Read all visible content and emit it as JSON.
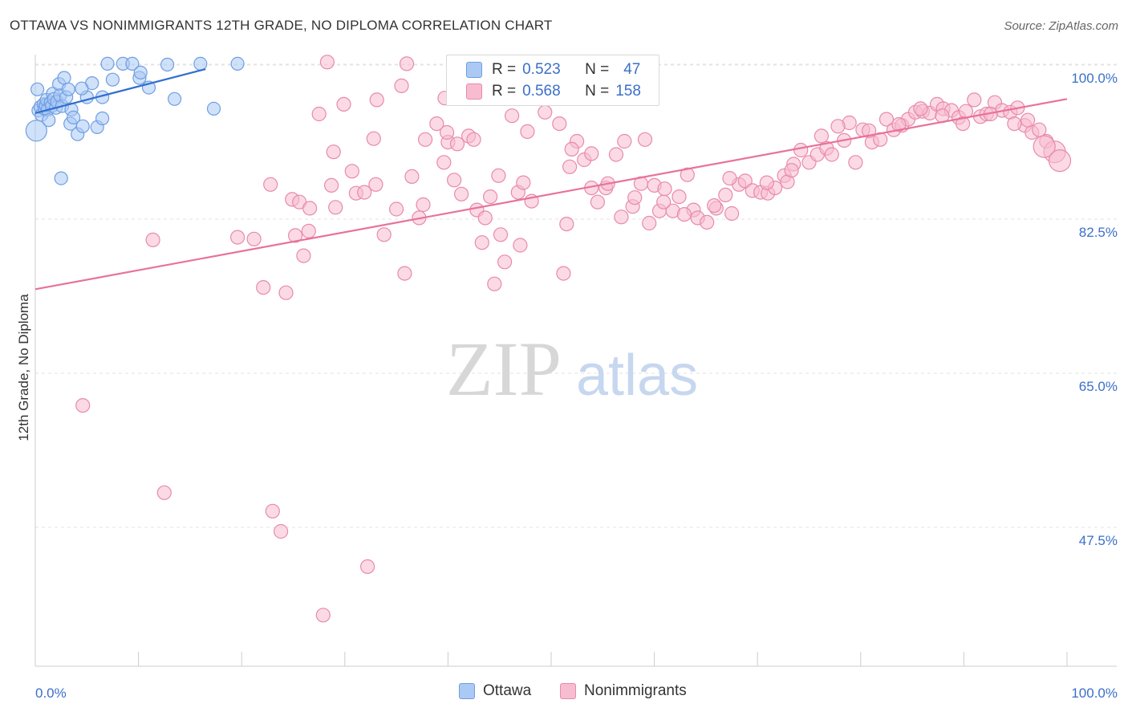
{
  "title": "OTTAWA VS NONIMMIGRANTS 12TH GRADE, NO DIPLOMA CORRELATION CHART",
  "source": "Source: ZipAtlas.com",
  "watermark": {
    "zip": "ZIP",
    "atlas": "atlas"
  },
  "legend": {
    "rows": [
      {
        "r_label": "R =",
        "r_value": "0.523",
        "n_label": "N =",
        "n_value": "47",
        "color": "#aac9f5",
        "stroke": "#6f9ee0"
      },
      {
        "r_label": "R =",
        "r_value": "0.568",
        "n_label": "N =",
        "n_value": "158",
        "color": "#f7bcd0",
        "stroke": "#e88aab"
      }
    ],
    "bottom": [
      "Ottawa",
      "Nonimmigrants"
    ]
  },
  "chart_data": {
    "type": "scatter",
    "title": "OTTAWA VS NONIMMIGRANTS 12TH GRADE, NO DIPLOMA CORRELATION CHART",
    "xlabel": "",
    "ylabel": "12th Grade, No Diploma",
    "xlim": [
      0,
      100
    ],
    "ylim": [
      33,
      101.5
    ],
    "x_tick_labels": [
      "0.0%",
      "100.0%"
    ],
    "y_ticks": [
      100,
      82.5,
      65,
      47.5
    ],
    "y_tick_labels": [
      "100.0%",
      "82.5%",
      "65.0%",
      "47.5%"
    ],
    "grid": true,
    "colors": {
      "ottawa": "#6f9ee0",
      "ottawa_fill": "#aac9f5",
      "nonimmigrants": "#e8729b",
      "nonimmigrants_fill": "#f7bcd0",
      "tick_label": "#3b6fc8"
    },
    "series": [
      {
        "name": "Ottawa",
        "trend": {
          "x": [
            0,
            16.5
          ],
          "y": [
            96.0,
            101.0
          ]
        },
        "points": [
          [
            0.3,
            96.3
          ],
          [
            0.5,
            96.7
          ],
          [
            0.6,
            95.8
          ],
          [
            0.8,
            97.0
          ],
          [
            0.9,
            96.5
          ],
          [
            1.0,
            96.9
          ],
          [
            1.1,
            97.5
          ],
          [
            1.2,
            96.4
          ],
          [
            1.3,
            95.2
          ],
          [
            1.5,
            97.2
          ],
          [
            1.6,
            96.8
          ],
          [
            1.7,
            98.2
          ],
          [
            1.8,
            97.6
          ],
          [
            2.0,
            96.6
          ],
          [
            2.1,
            97.3
          ],
          [
            2.3,
            99.3
          ],
          [
            2.4,
            98.0
          ],
          [
            2.5,
            88.6
          ],
          [
            2.6,
            96.8
          ],
          [
            2.8,
            100.0
          ],
          [
            3.0,
            97.8
          ],
          [
            3.2,
            98.7
          ],
          [
            3.4,
            94.8
          ],
          [
            3.5,
            96.4
          ],
          [
            3.7,
            95.5
          ],
          [
            4.1,
            93.6
          ],
          [
            4.6,
            94.5
          ],
          [
            5.0,
            97.8
          ],
          [
            5.5,
            99.4
          ],
          [
            6.0,
            94.4
          ],
          [
            7.0,
            101.6
          ],
          [
            7.5,
            99.8
          ],
          [
            8.5,
            101.6
          ],
          [
            9.4,
            101.6
          ],
          [
            10.1,
            100.0
          ],
          [
            11.0,
            98.9
          ],
          [
            12.8,
            101.5
          ],
          [
            13.5,
            97.6
          ],
          [
            16.0,
            101.6
          ],
          [
            17.3,
            96.5
          ],
          [
            6.5,
            97.8
          ],
          [
            4.5,
            98.8
          ],
          [
            0.2,
            98.7
          ],
          [
            0.1,
            94.0
          ],
          [
            6.5,
            95.4
          ],
          [
            10.2,
            100.6
          ],
          [
            19.6,
            101.6
          ]
        ],
        "sizes_large": [
          [
            0.1,
            94.0
          ]
        ]
      },
      {
        "name": "Nonimmigrants",
        "trend": {
          "x": [
            0,
            100
          ],
          "y": [
            76.0,
            97.6
          ]
        },
        "points": [
          [
            11.4,
            81.6
          ],
          [
            4.6,
            62.8
          ],
          [
            12.5,
            52.9
          ],
          [
            19.6,
            81.9
          ],
          [
            21.2,
            81.7
          ],
          [
            22.1,
            76.2
          ],
          [
            22.8,
            87.9
          ],
          [
            23.0,
            50.8
          ],
          [
            23.8,
            48.5
          ],
          [
            24.3,
            75.6
          ],
          [
            24.9,
            86.2
          ],
          [
            25.6,
            85.9
          ],
          [
            26.0,
            79.8
          ],
          [
            26.5,
            82.6
          ],
          [
            27.5,
            95.9
          ],
          [
            27.9,
            39.0
          ],
          [
            28.3,
            101.8
          ],
          [
            28.7,
            87.8
          ],
          [
            29.1,
            85.3
          ],
          [
            29.9,
            97.0
          ],
          [
            31.1,
            86.9
          ],
          [
            31.9,
            87.0
          ],
          [
            32.2,
            44.5
          ],
          [
            33.0,
            87.9
          ],
          [
            33.1,
            97.5
          ],
          [
            33.8,
            82.2
          ],
          [
            35.0,
            85.1
          ],
          [
            35.5,
            99.1
          ],
          [
            36.0,
            101.6
          ],
          [
            36.5,
            88.8
          ],
          [
            37.6,
            85.6
          ],
          [
            37.8,
            93.0
          ],
          [
            38.9,
            94.8
          ],
          [
            39.6,
            90.4
          ],
          [
            39.7,
            97.7
          ],
          [
            40.0,
            92.7
          ],
          [
            40.6,
            88.4
          ],
          [
            40.9,
            92.5
          ],
          [
            41.3,
            86.8
          ],
          [
            42.0,
            93.4
          ],
          [
            42.8,
            85.0
          ],
          [
            43.3,
            81.3
          ],
          [
            43.6,
            84.1
          ],
          [
            44.1,
            86.5
          ],
          [
            44.5,
            76.6
          ],
          [
            45.1,
            82.2
          ],
          [
            45.5,
            79.1
          ],
          [
            46.2,
            95.7
          ],
          [
            46.8,
            87.0
          ],
          [
            47.0,
            81.0
          ],
          [
            47.7,
            93.9
          ],
          [
            48.1,
            86.0
          ],
          [
            49.4,
            96.1
          ],
          [
            50.8,
            94.8
          ],
          [
            51.2,
            77.8
          ],
          [
            51.8,
            89.9
          ],
          [
            52.5,
            92.8
          ],
          [
            53.2,
            90.7
          ],
          [
            53.9,
            91.4
          ],
          [
            54.5,
            85.9
          ],
          [
            55.3,
            87.5
          ],
          [
            55.5,
            88.0
          ],
          [
            56.3,
            91.3
          ],
          [
            57.1,
            92.8
          ],
          [
            57.9,
            85.4
          ],
          [
            58.7,
            88.0
          ],
          [
            59.1,
            93.0
          ],
          [
            59.5,
            83.5
          ],
          [
            60.0,
            87.8
          ],
          [
            60.5,
            84.9
          ],
          [
            61.0,
            87.4
          ],
          [
            61.8,
            84.9
          ],
          [
            62.4,
            86.5
          ],
          [
            63.2,
            89.0
          ],
          [
            63.8,
            85.0
          ],
          [
            64.2,
            84.1
          ],
          [
            65.1,
            83.6
          ],
          [
            66.0,
            85.2
          ],
          [
            66.9,
            86.7
          ],
          [
            67.5,
            84.6
          ],
          [
            68.2,
            87.9
          ],
          [
            68.8,
            88.3
          ],
          [
            69.5,
            87.2
          ],
          [
            70.3,
            87.0
          ],
          [
            71.0,
            86.9
          ],
          [
            71.7,
            87.5
          ],
          [
            72.6,
            88.9
          ],
          [
            73.5,
            90.2
          ],
          [
            74.2,
            91.8
          ],
          [
            75.0,
            90.4
          ],
          [
            75.8,
            91.3
          ],
          [
            76.7,
            92.0
          ],
          [
            77.2,
            91.3
          ],
          [
            78.4,
            92.9
          ],
          [
            78.9,
            94.9
          ],
          [
            79.5,
            90.4
          ],
          [
            80.2,
            94.1
          ],
          [
            81.1,
            92.7
          ],
          [
            81.9,
            93.0
          ],
          [
            82.5,
            95.3
          ],
          [
            83.2,
            94.1
          ],
          [
            84.0,
            94.6
          ],
          [
            84.6,
            95.3
          ],
          [
            85.3,
            96.1
          ],
          [
            86.0,
            96.2
          ],
          [
            86.7,
            96.0
          ],
          [
            87.4,
            97.0
          ],
          [
            88.0,
            96.5
          ],
          [
            88.8,
            96.3
          ],
          [
            89.5,
            95.5
          ],
          [
            90.2,
            96.2
          ],
          [
            91.0,
            97.5
          ],
          [
            91.6,
            95.6
          ],
          [
            92.2,
            95.9
          ],
          [
            93.0,
            97.2
          ],
          [
            93.7,
            96.3
          ],
          [
            94.5,
            96.1
          ],
          [
            95.2,
            96.6
          ],
          [
            95.9,
            94.6
          ],
          [
            96.6,
            93.8
          ],
          [
            97.3,
            94.1
          ],
          [
            98.0,
            92.8
          ],
          [
            98.8,
            91.6
          ],
          [
            76.2,
            93.4
          ],
          [
            72.9,
            88.2
          ],
          [
            65.8,
            85.5
          ],
          [
            58.1,
            86.4
          ],
          [
            52.0,
            91.9
          ],
          [
            47.3,
            88.1
          ],
          [
            44.9,
            88.9
          ],
          [
            42.5,
            93.0
          ],
          [
            39.9,
            93.8
          ],
          [
            37.2,
            84.1
          ],
          [
            35.8,
            77.8
          ],
          [
            32.8,
            93.1
          ],
          [
            30.7,
            89.4
          ],
          [
            28.9,
            91.6
          ],
          [
            26.6,
            85.2
          ],
          [
            25.2,
            82.1
          ],
          [
            53.9,
            87.5
          ],
          [
            60.9,
            85.9
          ],
          [
            62.9,
            84.5
          ],
          [
            67.3,
            88.6
          ],
          [
            70.9,
            88.1
          ],
          [
            73.3,
            89.5
          ],
          [
            77.8,
            94.5
          ],
          [
            80.8,
            94.0
          ],
          [
            83.7,
            94.7
          ],
          [
            85.8,
            96.5
          ],
          [
            87.9,
            95.7
          ],
          [
            89.9,
            94.8
          ],
          [
            92.6,
            95.9
          ],
          [
            94.9,
            94.8
          ],
          [
            96.2,
            95.2
          ],
          [
            97.8,
            92.2
          ],
          [
            99.3,
            90.6
          ],
          [
            56.8,
            84.2
          ],
          [
            51.5,
            83.4
          ]
        ],
        "sizes_large": [
          [
            97.8,
            92.2
          ],
          [
            99.3,
            90.6
          ],
          [
            98.8,
            91.6
          ]
        ]
      }
    ]
  }
}
